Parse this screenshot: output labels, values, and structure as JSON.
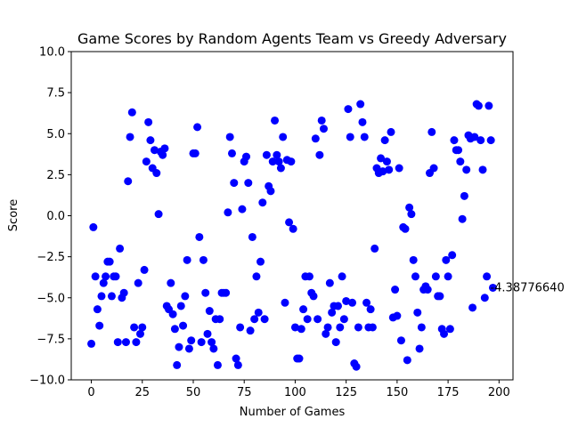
{
  "chart_data": {
    "type": "scatter",
    "title": "Game Scores by Random Agents Team vs Greedy Adversary",
    "xlabel": "Number of Games",
    "ylabel": "Score",
    "color": "#0000ff",
    "x": [
      0,
      1,
      2,
      3,
      4,
      5,
      6,
      7,
      8,
      9,
      10,
      11,
      12,
      13,
      14,
      15,
      16,
      17,
      18,
      19,
      20,
      21,
      22,
      23,
      24,
      25,
      26,
      27,
      28,
      29,
      30,
      31,
      32,
      33,
      34,
      35,
      36,
      37,
      38,
      39,
      40,
      41,
      42,
      43,
      44,
      45,
      46,
      47,
      48,
      49,
      50,
      51,
      52,
      53,
      54,
      55,
      56,
      57,
      58,
      59,
      60,
      61,
      62,
      63,
      64,
      65,
      66,
      67,
      68,
      69,
      70,
      71,
      72,
      73,
      74,
      75,
      76,
      77,
      78,
      79,
      80,
      81,
      82,
      83,
      84,
      85,
      86,
      87,
      88,
      89,
      90,
      91,
      92,
      93,
      94,
      95,
      96,
      97,
      98,
      99,
      100,
      101,
      102,
      103,
      104,
      105,
      106,
      107,
      108,
      109,
      110,
      111,
      112,
      113,
      114,
      115,
      116,
      117,
      118,
      119,
      120,
      121,
      122,
      123,
      124,
      125,
      126,
      127,
      128,
      129,
      130,
      131,
      132,
      133,
      134,
      135,
      136,
      137,
      138,
      139,
      140,
      141,
      142,
      143,
      144,
      145,
      146,
      147,
      148,
      149,
      150,
      151,
      152,
      153,
      154,
      155,
      156,
      157,
      158,
      159,
      160,
      161,
      162,
      163,
      164,
      165,
      166,
      167,
      168,
      169,
      170,
      171,
      172,
      173,
      174,
      175,
      176,
      177,
      178,
      179,
      180,
      181,
      182,
      183,
      184,
      185,
      186,
      187,
      188,
      189,
      190,
      191,
      192,
      193,
      194,
      195,
      196,
      197
    ],
    "values": [
      -7.8,
      -0.7,
      -3.7,
      -5.7,
      -6.7,
      -4.9,
      -4.1,
      -3.7,
      -2.8,
      -2.8,
      -4.9,
      -3.7,
      -3.7,
      -7.7,
      -2.0,
      -5.0,
      -4.7,
      -7.7,
      2.1,
      4.8,
      6.3,
      -6.8,
      -7.7,
      -4.1,
      -7.2,
      -6.8,
      -3.3,
      3.3,
      5.7,
      4.6,
      2.9,
      4.0,
      2.6,
      0.1,
      3.9,
      3.7,
      4.1,
      -5.5,
      -5.7,
      -4.1,
      -6.0,
      -6.9,
      -9.1,
      -8.0,
      -5.5,
      -6.7,
      -4.9,
      -2.7,
      -8.1,
      -7.6,
      3.8,
      3.8,
      5.4,
      -1.3,
      -7.7,
      -2.7,
      -4.7,
      -7.2,
      -5.8,
      -7.7,
      -8.1,
      -6.3,
      -9.1,
      -6.3,
      -4.7,
      -4.7,
      -4.7,
      0.2,
      4.8,
      3.8,
      2.0,
      -8.7,
      -9.1,
      -6.8,
      0.4,
      3.3,
      3.6,
      2.0,
      -7.0,
      -1.3,
      -6.3,
      -3.7,
      -5.9,
      -2.8,
      0.8,
      -6.3,
      3.7,
      1.8,
      1.5,
      3.3,
      5.8,
      3.7,
      3.3,
      2.9,
      4.8,
      -5.3,
      3.4,
      -0.4,
      3.3,
      -0.8,
      -6.8,
      -8.7,
      -8.7,
      -6.9,
      -5.7,
      -3.7,
      -6.3,
      -3.7,
      -4.7,
      -4.9,
      4.7,
      -6.3,
      3.7,
      5.8,
      5.3,
      -7.2,
      -6.8,
      -4.1,
      -5.9,
      -5.5,
      -7.7,
      -5.5,
      -6.8,
      -3.7,
      -6.3,
      -5.2,
      6.5,
      4.8,
      -5.3,
      -9.0,
      -9.2,
      -6.8,
      6.8,
      5.7,
      4.8,
      -5.3,
      -6.8,
      -5.7,
      -6.8,
      -2.0,
      2.9,
      2.6,
      3.5,
      2.7,
      4.6,
      3.3,
      2.8,
      5.1,
      -6.2,
      -4.5,
      -6.1,
      2.9,
      -7.6,
      -0.7,
      -0.8,
      -8.8,
      0.5,
      0.1,
      -2.7,
      -3.7,
      -5.9,
      -8.1,
      -6.8,
      -4.5,
      -4.3,
      -4.5,
      2.6,
      5.1,
      2.9,
      -3.7,
      -4.9,
      -4.9,
      -6.9,
      -7.2,
      -2.7,
      -3.7,
      -6.9,
      -2.4,
      4.6,
      4.0,
      4.0,
      3.3,
      -0.2,
      1.2,
      2.8,
      4.9,
      4.7,
      -5.6,
      4.8,
      6.8,
      6.7,
      4.6,
      2.8,
      -5.0,
      -3.7,
      6.7,
      4.6,
      -4.3877664
    ],
    "annotations": [
      {
        "text": "-4.38776640"
      }
    ],
    "xlim": [
      -9.85,
      206.85
    ],
    "xticks": [
      0,
      25,
      50,
      75,
      100,
      125,
      150,
      175,
      200
    ],
    "ylim": [
      -10,
      10
    ],
    "yticks": [
      {
        "value": -10,
        "label": "−10.0"
      },
      {
        "value": -7.5,
        "label": "−7.5"
      },
      {
        "value": -5,
        "label": "−5.0"
      },
      {
        "value": -2.5,
        "label": "−2.5"
      },
      {
        "value": 0,
        "label": "0.0"
      },
      {
        "value": 2.5,
        "label": "2.5"
      },
      {
        "value": 5,
        "label": "5.0"
      },
      {
        "value": 7.5,
        "label": "7.5"
      },
      {
        "value": 10,
        "label": "10.0"
      }
    ]
  }
}
